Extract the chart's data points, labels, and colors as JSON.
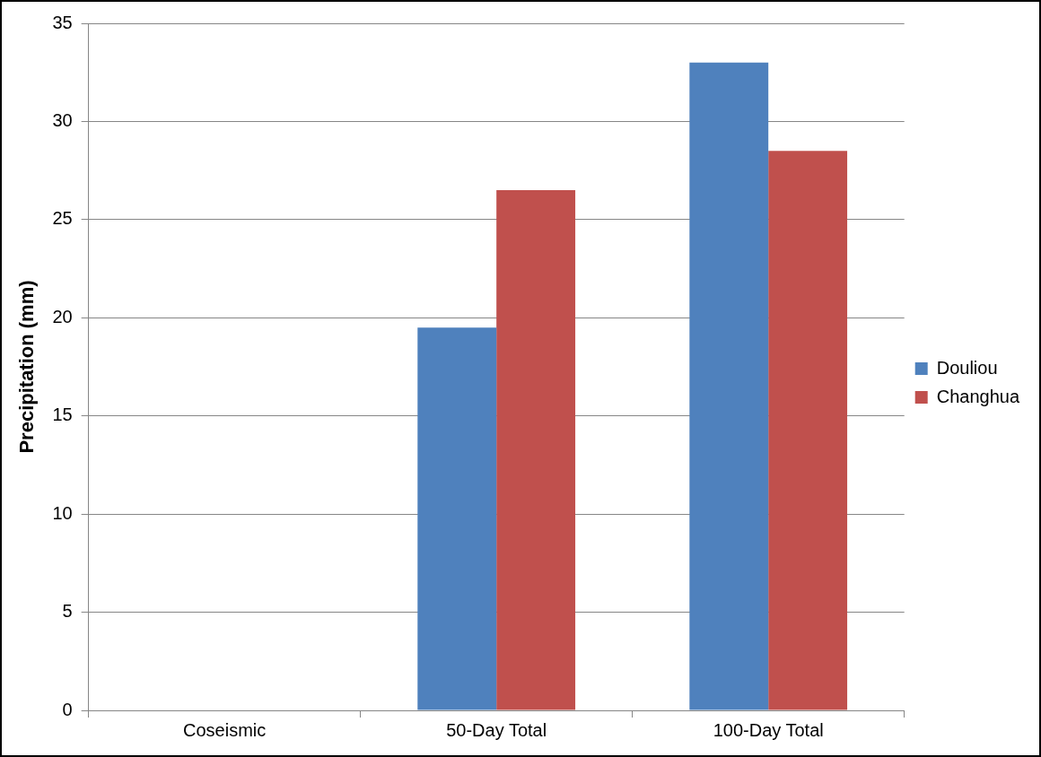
{
  "chart_data": {
    "type": "bar",
    "ylabel": "Precipitation (mm)",
    "categories": [
      "Coseismic",
      "50-Day Total",
      "100-Day Total"
    ],
    "series": [
      {
        "name": "Douliou",
        "color": "#4f81bd",
        "values": [
          0,
          19.5,
          33
        ]
      },
      {
        "name": "Changhua",
        "color": "#c0504d",
        "values": [
          0,
          26.5,
          28.5
        ]
      }
    ],
    "ylim": [
      0,
      35
    ],
    "yticks": [
      0,
      5,
      10,
      15,
      20,
      25,
      30,
      35
    ],
    "grid": "y",
    "legend": "right"
  }
}
